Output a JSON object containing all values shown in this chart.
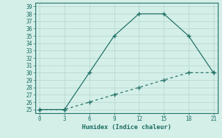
{
  "xlabel": "Humidex (Indice chaleur)",
  "line1_x": [
    0,
    3,
    6,
    9,
    12,
    15,
    18,
    21
  ],
  "line1_y": [
    25,
    25,
    30,
    35,
    38,
    38,
    35,
    30
  ],
  "line2_x": [
    0,
    3,
    6,
    9,
    12,
    15,
    18,
    21
  ],
  "line2_y": [
    25,
    25,
    26,
    27,
    28,
    29,
    30,
    30
  ],
  "line_color": "#1a6e62",
  "bg_color": "#d4eee8",
  "grid_color": "#b8d8d0",
  "xlim": [
    -0.5,
    21.5
  ],
  "ylim": [
    24.5,
    39.5
  ],
  "xticks": [
    0,
    3,
    6,
    9,
    12,
    15,
    18,
    21
  ],
  "yticks": [
    25,
    26,
    27,
    28,
    29,
    30,
    31,
    32,
    33,
    34,
    35,
    36,
    37,
    38,
    39
  ]
}
